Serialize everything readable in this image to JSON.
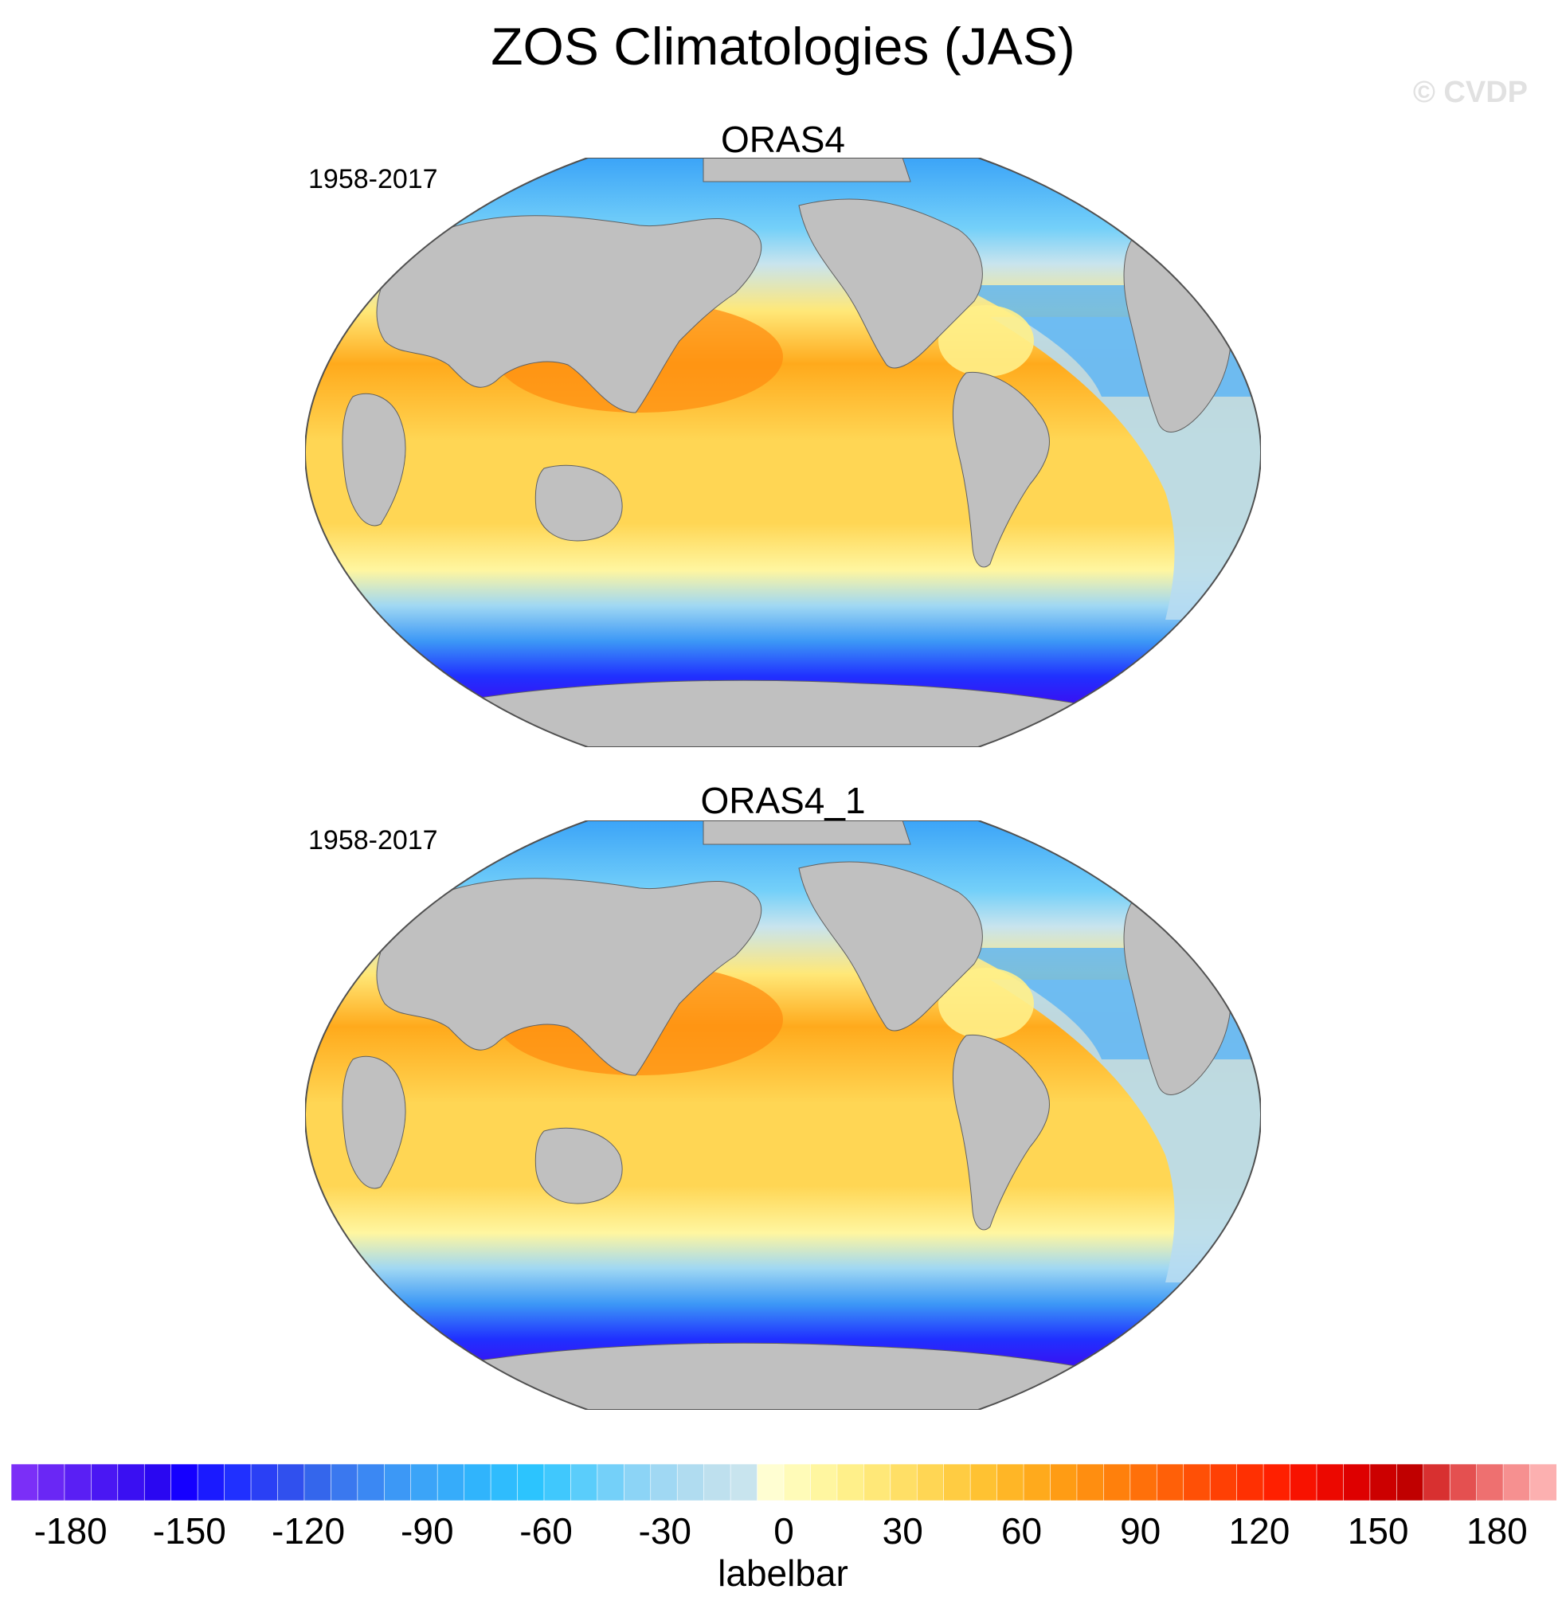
{
  "figure": {
    "title": "ZOS Climatologies (JAS)",
    "watermark": "© CVDP"
  },
  "panels": [
    {
      "title": "ORAS4",
      "period": "1958-2017"
    },
    {
      "title": "ORAS4_1",
      "period": "1958-2017"
    }
  ],
  "colorbar": {
    "title": "labelbar",
    "tick_labels": [
      "-180",
      "-150",
      "-120",
      "-90",
      "-60",
      "-30",
      "0",
      "30",
      "60",
      "90",
      "120",
      "150",
      "180"
    ],
    "colors": [
      "#7b2ff7",
      "#6a27f5",
      "#5a1ff4",
      "#4a17f3",
      "#3a0ff2",
      "#2a07f1",
      "#1500ff",
      "#1a1aff",
      "#2030ff",
      "#2a40f5",
      "#3050ee",
      "#3466ec",
      "#3a78ef",
      "#3b88f3",
      "#3c98f6",
      "#3ba4f8",
      "#36acfa",
      "#30b4fc",
      "#2fbcfd",
      "#2cc4fe",
      "#40c8fd",
      "#5acdfb",
      "#74d0f9",
      "#8cd4f6",
      "#a0d8f3",
      "#b0dcf0",
      "#bee0ee",
      "#c8e4ee",
      "#fffed2",
      "#fffbb8",
      "#fff6a0",
      "#fff08a",
      "#ffe878",
      "#ffdf66",
      "#ffd654",
      "#ffcc42",
      "#ffc232",
      "#ffb626",
      "#ffaa1c",
      "#ff9c14",
      "#ff8e10",
      "#ff800c",
      "#ff700a",
      "#ff6008",
      "#ff5006",
      "#ff4004",
      "#ff3002",
      "#ff2000",
      "#f81200",
      "#ec0800",
      "#de0000",
      "#cc0000",
      "#c00000",
      "#d83030",
      "#e45050",
      "#ee7070",
      "#f69090",
      "#fcb0b0"
    ]
  },
  "chart_data": {
    "type": "heatmap",
    "title": "ZOS Climatologies (JAS)",
    "colorbar_label": "labelbar",
    "colorbar_range": [
      -195,
      195
    ],
    "colorbar_ticks": [
      -180,
      -150,
      -120,
      -90,
      -60,
      -30,
      0,
      30,
      60,
      90,
      120,
      150,
      180
    ],
    "panels": [
      {
        "name": "ORAS4",
        "period": "1958-2017"
      },
      {
        "name": "ORAS4_1",
        "period": "1958-2017"
      }
    ]
  }
}
